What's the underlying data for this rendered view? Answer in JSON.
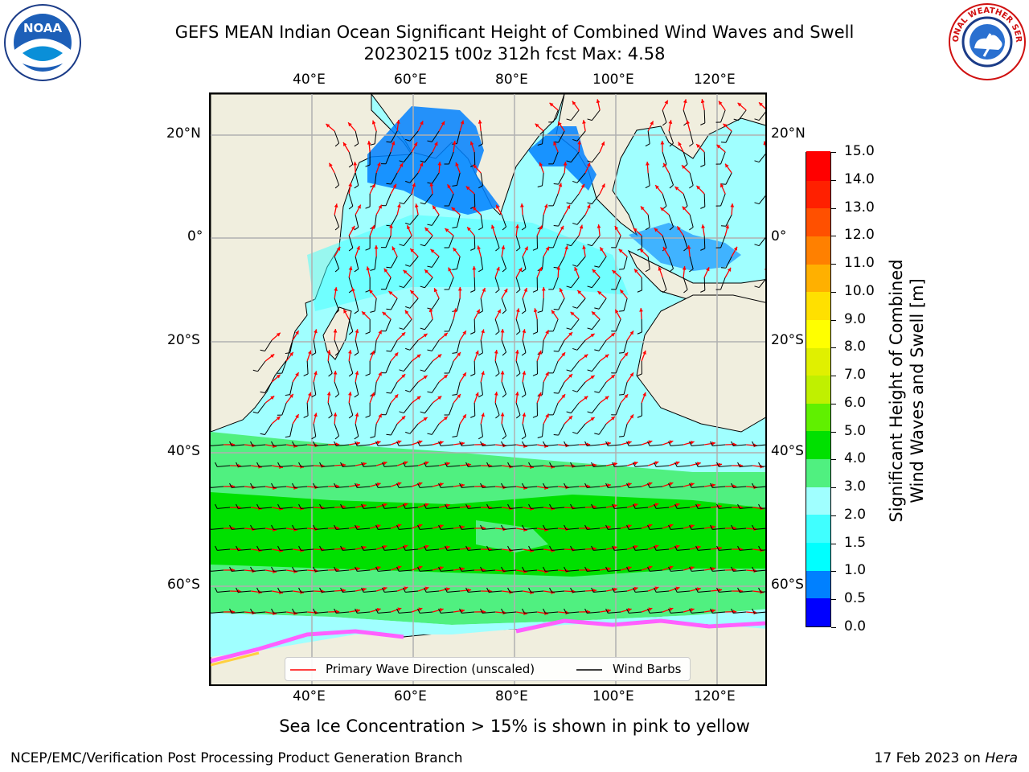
{
  "header": {
    "title_line1": "GEFS MEAN Indian Ocean Significant Height of Combined Wind Waves and Swell",
    "title_line2": "20230215 t00z 312h fcst   Max: 4.58"
  },
  "logos": {
    "left": {
      "icon": "noaa-logo-icon",
      "text": "NOAA"
    },
    "right": {
      "icon": "nws-logo-icon",
      "text": "NATIONAL WEATHER SERVICE"
    }
  },
  "axes": {
    "lon_labels": [
      "40°E",
      "60°E",
      "80°E",
      "100°E",
      "120°E"
    ],
    "lat_labels": [
      "20°N",
      "0°",
      "20°S",
      "40°S",
      "60°S"
    ]
  },
  "legend": {
    "wave_direction": "Primary Wave Direction (unscaled)",
    "wind_barbs": "Wind Barbs"
  },
  "colorbar": {
    "label_line1": "Significant Height of Combined",
    "label_line2": "Wind Waves and Swell [m]",
    "ticks": [
      "0.0",
      "0.5",
      "1.0",
      "1.5",
      "2.0",
      "3.0",
      "4.0",
      "5.0",
      "6.0",
      "7.0",
      "8.0",
      "9.0",
      "10.0",
      "11.0",
      "12.0",
      "13.0",
      "14.0",
      "15.0"
    ],
    "colors": [
      "#0000ff",
      "#0080ff",
      "#00ffff",
      "#40ffff",
      "#a0ffff",
      "#50f080",
      "#00e000",
      "#60f000",
      "#c0f000",
      "#e0f000",
      "#ffff00",
      "#ffe000",
      "#ffb000",
      "#ff8000",
      "#ff5000",
      "#ff2000",
      "#ff0000"
    ]
  },
  "note": "Sea Ice Concentration > 15% is shown in pink to yellow",
  "footer": {
    "left": "NCEP/EMC/Verification Post Processing Product Generation Branch",
    "date": "17 Feb 2023 on ",
    "host": "Hera"
  }
}
